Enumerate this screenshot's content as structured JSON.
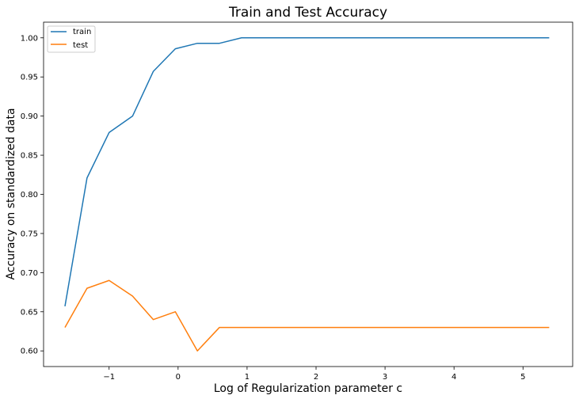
{
  "chart_data": {
    "type": "line",
    "title": "Train and Test Accuracy",
    "xlabel": "Log of Regularization parameter c",
    "ylabel": "Accuracy on standardized data",
    "xlim": [
      -1.95,
      5.72
    ],
    "ylim": [
      0.58,
      1.02
    ],
    "xticks": [
      -1,
      0,
      1,
      2,
      3,
      4,
      5
    ],
    "xtick_labels": [
      "−1",
      "0",
      "1",
      "2",
      "3",
      "4",
      "5"
    ],
    "yticks": [
      0.6,
      0.65,
      0.7,
      0.75,
      0.8,
      0.85,
      0.9,
      0.95,
      1.0
    ],
    "ytick_labels": [
      "0.60",
      "0.65",
      "0.70",
      "0.75",
      "0.80",
      "0.85",
      "0.90",
      "0.95",
      "1.00"
    ],
    "grid": false,
    "legend_position": "top-left",
    "x": [
      -1.64,
      -1.32,
      -1.0,
      -0.66,
      -0.36,
      -0.04,
      0.28,
      0.6,
      0.92,
      5.38
    ],
    "series": [
      {
        "name": "train",
        "color": "#1f77b4",
        "values": [
          0.657,
          0.821,
          0.879,
          0.9,
          0.957,
          0.986,
          0.993,
          0.993,
          1.0,
          1.0
        ]
      },
      {
        "name": "test",
        "color": "#ff7f0e",
        "values": [
          0.63,
          0.68,
          0.69,
          0.67,
          0.64,
          0.65,
          0.6,
          0.63,
          0.63,
          0.63
        ]
      }
    ]
  }
}
